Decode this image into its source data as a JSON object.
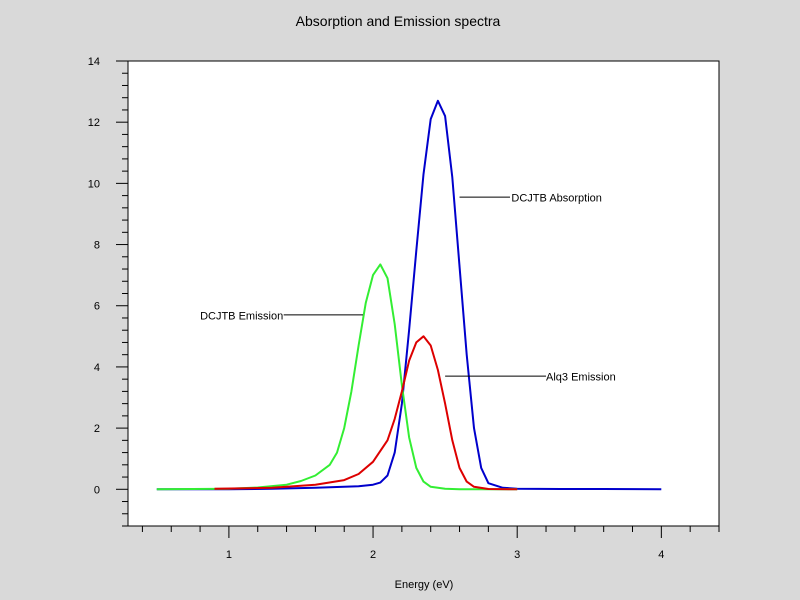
{
  "chart_data": {
    "type": "line",
    "title": "Absorption and Emission spectra",
    "xlabel": "Energy (eV)",
    "ylabel": "",
    "xlim": [
      0.3,
      4.4
    ],
    "ylim": [
      -1.2,
      14
    ],
    "xticks": [
      1,
      2,
      3,
      4
    ],
    "yticks": [
      0,
      2,
      4,
      6,
      8,
      10,
      12,
      14
    ],
    "grid": false,
    "series": [
      {
        "name": "DCJTB Absorption",
        "color": "#0000cc",
        "x": [
          0.5,
          1.0,
          1.3,
          1.6,
          1.8,
          1.9,
          2.0,
          2.05,
          2.1,
          2.15,
          2.2,
          2.25,
          2.3,
          2.35,
          2.4,
          2.45,
          2.5,
          2.55,
          2.6,
          2.65,
          2.7,
          2.75,
          2.8,
          2.9,
          3.0,
          3.3,
          3.6,
          4.0
        ],
        "y": [
          0,
          0,
          0.02,
          0.05,
          0.08,
          0.1,
          0.15,
          0.22,
          0.45,
          1.2,
          2.8,
          5.2,
          7.8,
          10.3,
          12.1,
          12.7,
          12.2,
          10.2,
          7.3,
          4.4,
          2.0,
          0.7,
          0.2,
          0.05,
          0.02,
          0.01,
          0.01,
          0
        ]
      },
      {
        "name": "DCJTB Emission",
        "color": "#33ee33",
        "x": [
          0.5,
          1.0,
          1.2,
          1.4,
          1.5,
          1.6,
          1.7,
          1.75,
          1.8,
          1.85,
          1.9,
          1.95,
          2.0,
          2.05,
          2.1,
          2.15,
          2.2,
          2.25,
          2.3,
          2.35,
          2.4,
          2.5,
          2.6,
          3.0
        ],
        "y": [
          0,
          0.02,
          0.06,
          0.15,
          0.27,
          0.45,
          0.8,
          1.2,
          2.0,
          3.2,
          4.7,
          6.1,
          7.0,
          7.35,
          6.9,
          5.4,
          3.4,
          1.7,
          0.7,
          0.25,
          0.08,
          0.02,
          0,
          0
        ]
      },
      {
        "name": "Alq3 Emission",
        "color": "#dd0000",
        "x": [
          0.9,
          1.3,
          1.6,
          1.8,
          1.9,
          2.0,
          2.1,
          2.15,
          2.2,
          2.25,
          2.3,
          2.35,
          2.4,
          2.45,
          2.5,
          2.55,
          2.6,
          2.65,
          2.7,
          2.8,
          3.0
        ],
        "y": [
          0.02,
          0.05,
          0.15,
          0.3,
          0.5,
          0.9,
          1.6,
          2.3,
          3.2,
          4.2,
          4.8,
          5.0,
          4.7,
          3.9,
          2.8,
          1.6,
          0.7,
          0.25,
          0.08,
          0.01,
          0
        ]
      }
    ],
    "annotations": [
      {
        "text": "DCJTB Absorption",
        "x": 2.96,
        "y": 9.4,
        "line_from": [
          2.6,
          9.55
        ],
        "line_to": [
          2.95,
          9.55
        ]
      },
      {
        "text": "DCJTB Emission",
        "x": 0.8,
        "y": 5.55,
        "line_from": [
          1.38,
          5.7
        ],
        "line_to": [
          1.93,
          5.7
        ]
      },
      {
        "text": "Alq3 Emission",
        "x": 3.2,
        "y": 3.55,
        "line_from": [
          2.5,
          3.7
        ],
        "line_to": [
          3.2,
          3.7
        ]
      }
    ]
  }
}
